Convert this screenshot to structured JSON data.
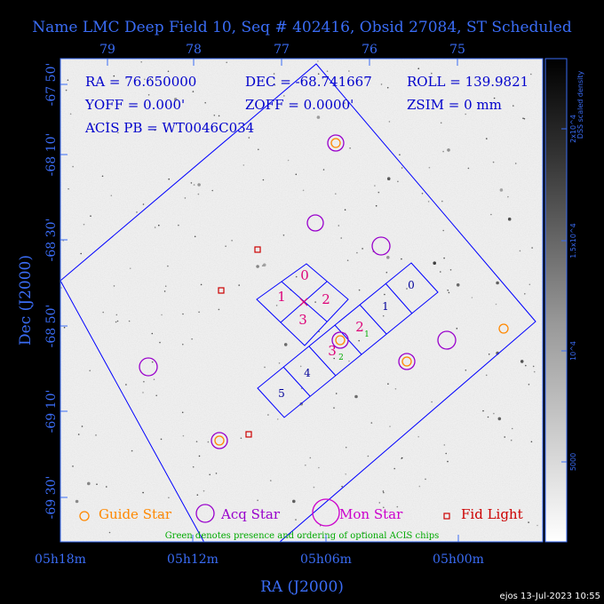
{
  "chart_data": {
    "type": "sky-field",
    "title": "Name LMC Deep Field 10, Seq # 402416, Obsid 27084, ST Scheduled",
    "xlabel": "RA (J2000)",
    "ylabel": "Dec (J2000)",
    "x_ticks": [
      "05h18m",
      "05h12m",
      "05h06m",
      "05h00m"
    ],
    "x_ticks_top": [
      "79",
      "78",
      "77",
      "76",
      "75"
    ],
    "y_ticks": [
      "-67 50'",
      "-68 10'",
      "-68 30'",
      "-68 50'",
      "-69 10'",
      "-69 30'"
    ],
    "colorbar": {
      "label": "DSS scaled density",
      "ticks": [
        "2x10^4",
        "1.5x10^4",
        "10^4",
        "5000"
      ]
    },
    "info": [
      "RA = 76.650000",
      "DEC = -68.741667",
      "ROLL = 139.9821",
      "YOFF = 0.000'",
      "ZOFF = 0.0000'",
      "ZSIM = 0 mm",
      "ACIS PB = WT0046C034"
    ],
    "chips": {
      "acis_i": [
        "0",
        "1",
        "2",
        "3"
      ],
      "acis_s": [
        "0",
        "1",
        "2",
        "3",
        "4",
        "5"
      ],
      "optional_order": [
        "1",
        "2"
      ]
    },
    "markers": {
      "guide_stars": 4,
      "acq_stars": 8,
      "fid_lights": 3
    },
    "legend": [
      "Guide Star",
      "Acq Star",
      "Mon Star",
      "Fid Light"
    ],
    "note": "Green denotes presence and ordering of optional ACIS chips",
    "footer": "ejos 13-Jul-2023 10:55",
    "colors": {
      "axes": "#3a6cf5",
      "field": "#0000ff",
      "guide": "#ff8800",
      "acq": "#9900cc",
      "mon": "#cc00cc",
      "fid": "#cc0000",
      "chip_label_i": "#dd0077",
      "chip_label_s": "#000099",
      "optional": "#00aa00"
    }
  }
}
